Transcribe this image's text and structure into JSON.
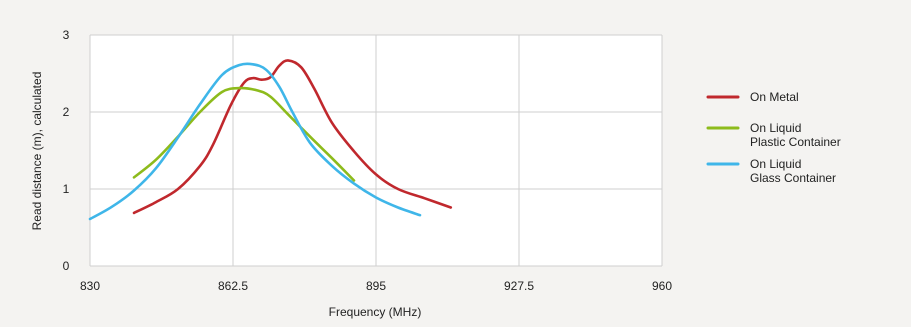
{
  "chart_data": {
    "type": "line",
    "title": "",
    "xlabel": "Frequency (MHz)",
    "ylabel": "Read distance (m), calculated",
    "xlim": [
      830,
      960
    ],
    "ylim": [
      0,
      3
    ],
    "grid": true,
    "legend_position": "right",
    "x_ticks": [
      830,
      862.5,
      895,
      927.5,
      960
    ],
    "x_tick_labels": [
      "830",
      "862.5",
      "895",
      "927.5",
      "960"
    ],
    "y_ticks": [
      0,
      1,
      2,
      3
    ],
    "y_tick_labels": [
      "0",
      "1",
      "2",
      "3"
    ],
    "series": [
      {
        "name_lines": [
          "On Metal"
        ],
        "color": "#c0282d",
        "x": [
          840,
          845,
          850,
          855,
          858,
          862,
          865,
          867,
          869,
          871,
          873,
          875,
          878,
          881,
          885,
          890,
          895,
          900,
          906,
          912
        ],
        "y": [
          0.69,
          0.83,
          1.0,
          1.3,
          1.58,
          2.09,
          2.38,
          2.44,
          2.42,
          2.45,
          2.6,
          2.67,
          2.58,
          2.3,
          1.86,
          1.49,
          1.19,
          1.0,
          0.88,
          0.76
        ]
      },
      {
        "name_lines": [
          "On Liquid",
          "Plastic Container"
        ],
        "color": "#8dbb1c",
        "x": [
          840,
          845,
          850,
          855,
          860,
          864,
          868,
          871,
          875,
          880,
          885,
          890
        ],
        "y": [
          1.15,
          1.38,
          1.68,
          2.0,
          2.26,
          2.31,
          2.28,
          2.2,
          1.97,
          1.68,
          1.4,
          1.11
        ]
      },
      {
        "name_lines": [
          "On Liquid",
          "Glass Container"
        ],
        "color": "#3fb6e9",
        "x": [
          830,
          835,
          840,
          845,
          850,
          855,
          860,
          864,
          867,
          870,
          873,
          876,
          880,
          885,
          890,
          895,
          900,
          905
        ],
        "y": [
          0.61,
          0.77,
          0.98,
          1.27,
          1.67,
          2.1,
          2.48,
          2.61,
          2.62,
          2.55,
          2.33,
          2.0,
          1.6,
          1.3,
          1.07,
          0.89,
          0.76,
          0.66
        ]
      }
    ]
  }
}
